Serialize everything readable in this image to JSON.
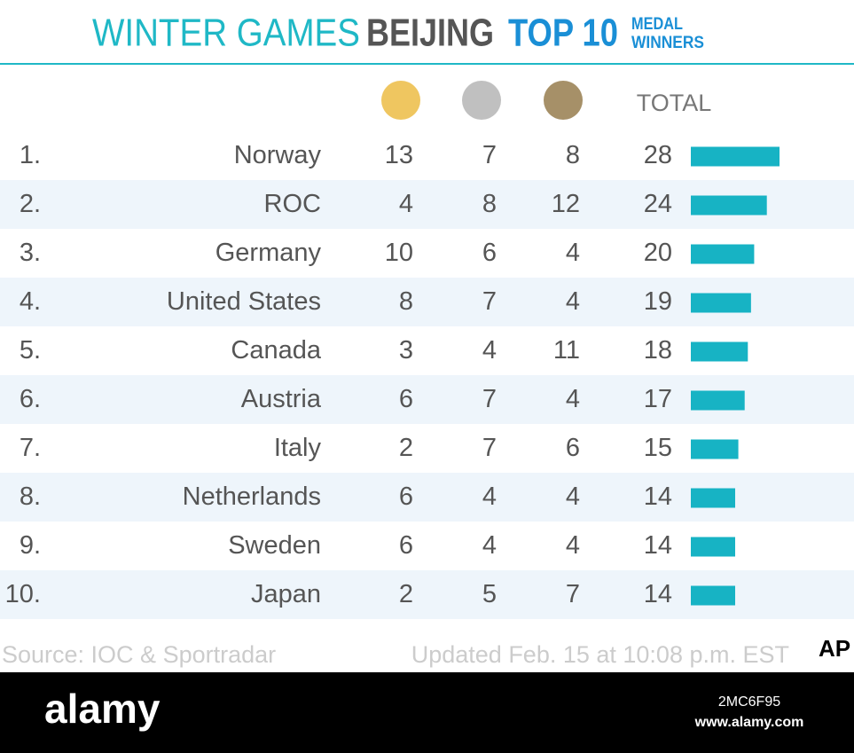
{
  "header": {
    "part1": "WINTER GAMES",
    "part2": "BEIJING",
    "part3": "TOP 10",
    "part4_line1": "MEDAL",
    "part4_line2": "WINNERS"
  },
  "table": {
    "total_header": "TOTAL",
    "rows": [
      {
        "rank": "1.",
        "country": "Norway",
        "gold": 13,
        "silver": 7,
        "bronze": 8,
        "total": 28
      },
      {
        "rank": "2.",
        "country": "ROC",
        "gold": 4,
        "silver": 8,
        "bronze": 12,
        "total": 24
      },
      {
        "rank": "3.",
        "country": "Germany",
        "gold": 10,
        "silver": 6,
        "bronze": 4,
        "total": 20
      },
      {
        "rank": "4.",
        "country": "United States",
        "gold": 8,
        "silver": 7,
        "bronze": 4,
        "total": 19
      },
      {
        "rank": "5.",
        "country": "Canada",
        "gold": 3,
        "silver": 4,
        "bronze": 11,
        "total": 18
      },
      {
        "rank": "6.",
        "country": "Austria",
        "gold": 6,
        "silver": 7,
        "bronze": 4,
        "total": 17
      },
      {
        "rank": "7.",
        "country": "Italy",
        "gold": 2,
        "silver": 7,
        "bronze": 6,
        "total": 15
      },
      {
        "rank": "8.",
        "country": "Netherlands",
        "gold": 6,
        "silver": 4,
        "bronze": 4,
        "total": 14
      },
      {
        "rank": "9.",
        "country": "Sweden",
        "gold": 6,
        "silver": 4,
        "bronze": 4,
        "total": 14
      },
      {
        "rank": "10.",
        "country": "Japan",
        "gold": 2,
        "silver": 5,
        "bronze": 7,
        "total": 14
      }
    ]
  },
  "footer": {
    "source": "Source: IOC & Sportradar",
    "updated": "Updated Feb. 15 at 10:08 p.m. EST",
    "logo": "AP"
  },
  "watermark": {
    "brand": "alamy",
    "id": "2MC6F95",
    "url": "www.alamy.com"
  }
}
